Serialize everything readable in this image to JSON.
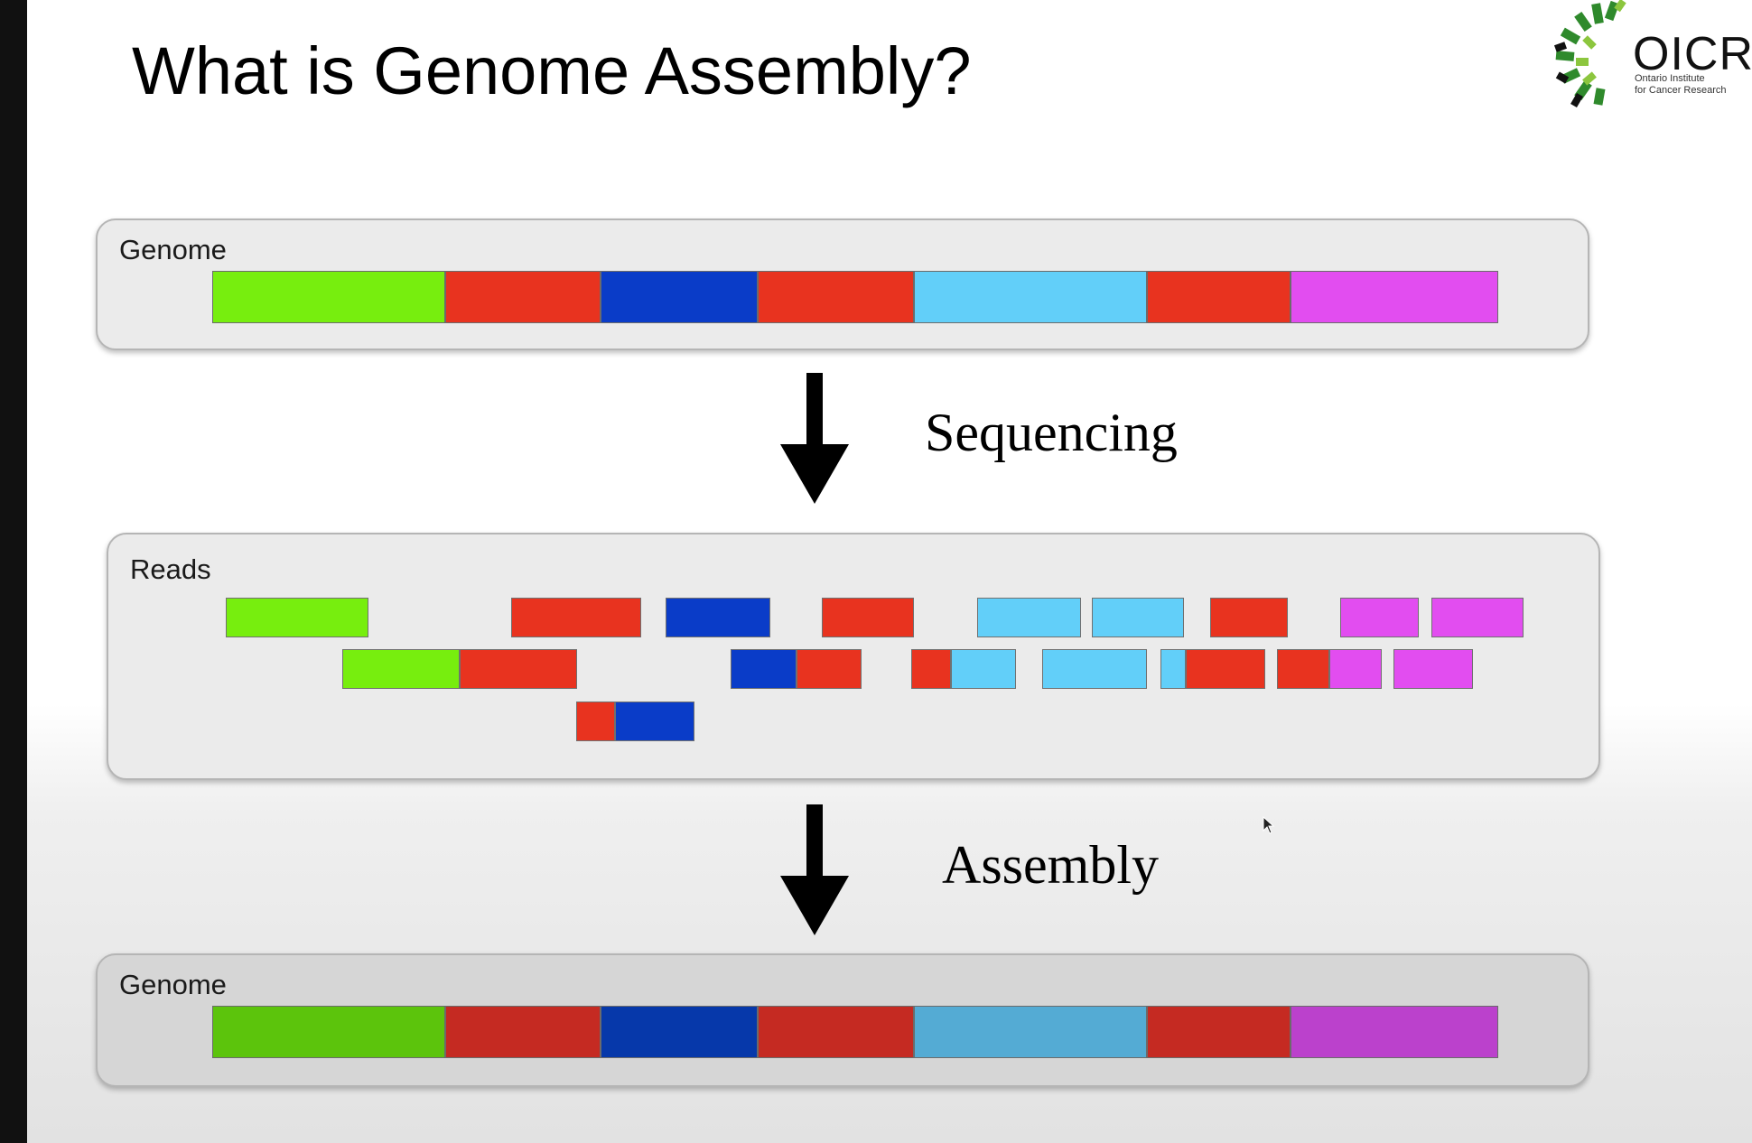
{
  "title": "What is Genome Assembly?",
  "logo": {
    "name": "OICR",
    "subtitle_line1": "Ontario Institute",
    "subtitle_line2": "for Cancer Research"
  },
  "colors": {
    "green": "#77ee0e",
    "red": "#e8331f",
    "blue": "#0a3cc8",
    "cyan": "#62cff9",
    "magenta": "#e24df0",
    "assembled_green": "#5cc40c",
    "assembled_red": "#c52a22",
    "assembled_blue": "#0638aa",
    "assembled_cyan": "#54abd4",
    "assembled_magenta": "#bb41cc"
  },
  "genome_panel": {
    "label": "Genome",
    "segments": [
      "green",
      "red",
      "blue",
      "red",
      "cyan",
      "red",
      "magenta"
    ]
  },
  "sequencing_step": {
    "label": "Sequencing"
  },
  "reads_panel": {
    "label": "Reads",
    "reads": [
      [
        "green"
      ],
      [
        "red"
      ],
      [
        "blue"
      ],
      [
        "red"
      ],
      [
        "cyan"
      ],
      [
        "cyan"
      ],
      [
        "red"
      ],
      [
        "magenta"
      ],
      [
        "magenta"
      ],
      [
        "green",
        "red"
      ],
      [
        "blue",
        "red"
      ],
      [
        "red",
        "cyan"
      ],
      [
        "cyan"
      ],
      [
        "cyan",
        "red"
      ],
      [
        "red",
        "magenta"
      ],
      [
        "magenta"
      ],
      [
        "red",
        "blue"
      ]
    ]
  },
  "assembly_step": {
    "label": "Assembly"
  },
  "assembled_panel": {
    "label": "Genome",
    "segments": [
      "assembled_green",
      "assembled_red",
      "assembled_blue",
      "assembled_red",
      "assembled_cyan",
      "assembled_red",
      "assembled_magenta"
    ]
  }
}
